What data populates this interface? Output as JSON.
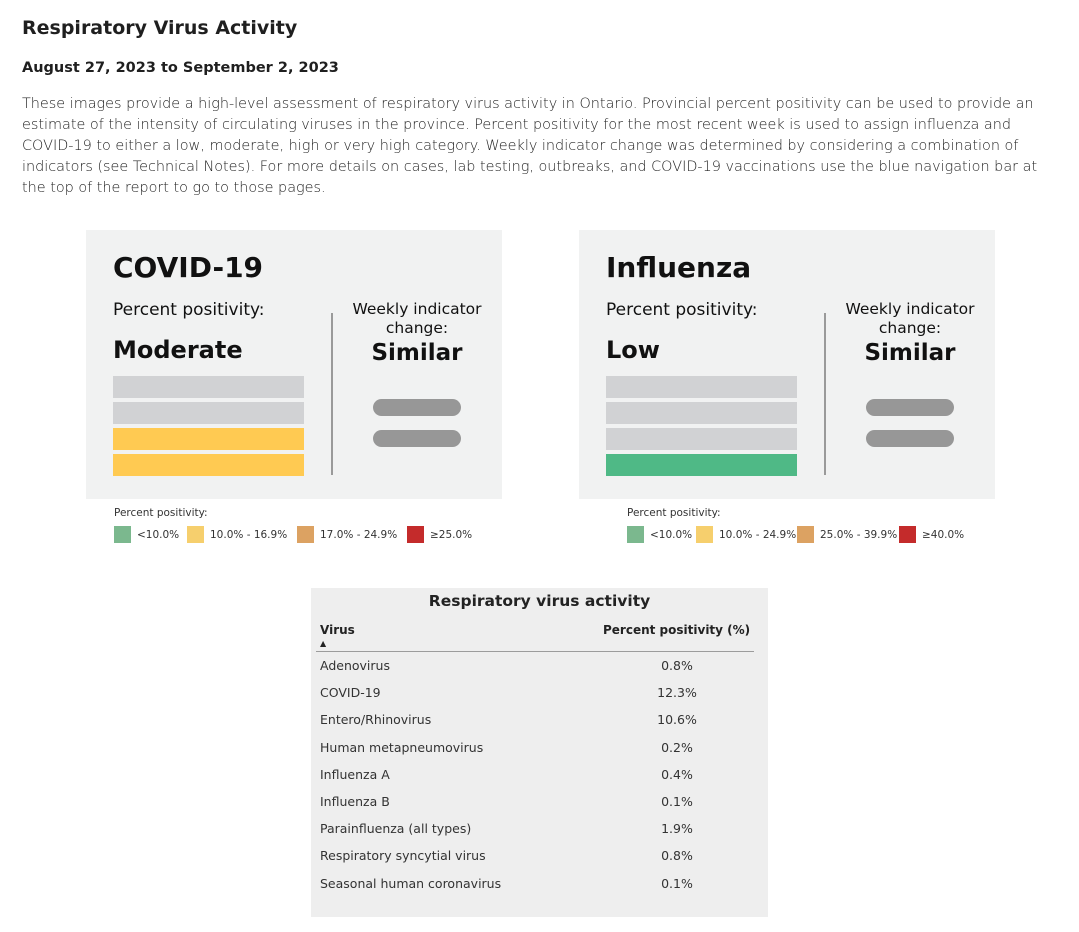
{
  "page": {
    "title": "Respiratory Virus Activity",
    "date_range": "August 27, 2023 to September 2, 2023",
    "intro": "These images provide a high-level assessment of respiratory virus activity in Ontario. Provincial percent positivity can be used to provide an estimate of the intensity of circulating viruses in the province. Percent positivity for the most recent week is used to assign influenza and COVID-19 to either a low, moderate, high or very high category. Weekly indicator change was determined by considering a combination of indicators (see Technical Notes). For more details on cases, lab testing, outbreaks, and COVID-19 vaccinations use the blue navigation bar at the top of the report to go to those pages."
  },
  "colors": {
    "low": "#4fb986",
    "moderate": "#ffca52",
    "high": "#e0a55f",
    "very_high": "#c0302f",
    "inactive_bar": "#d1d2d4",
    "pill": "#979797",
    "legend_low": "#7bb88e",
    "legend_moderate": "#f6cf6d",
    "legend_high": "#dca262",
    "legend_very_high": "#c42b2b"
  },
  "covid": {
    "name": "COVID-19",
    "pp_label": "Percent positivity:",
    "level": "Moderate",
    "level_index": 2,
    "wic_label": "Weekly indicator change:",
    "wic_value": "Similar",
    "legend_title": "Percent positivity:",
    "legend": [
      "<10.0%",
      "10.0% - 16.9%",
      "17.0% - 24.9%",
      "≥25.0%"
    ]
  },
  "influenza": {
    "name": "Influenza",
    "pp_label": "Percent positivity:",
    "level": "Low",
    "level_index": 1,
    "wic_label": "Weekly indicator change:",
    "wic_value": "Similar",
    "legend_title": "Percent positivity:",
    "legend": [
      "<10.0%",
      "10.0% - 24.9%",
      "25.0% - 39.9%",
      "≥40.0%"
    ]
  },
  "table": {
    "title": "Respiratory virus activity",
    "col_virus": "Virus",
    "col_pct": "Percent positivity (%)",
    "sort_icon": "sort-ascending-icon",
    "rows": [
      {
        "virus": "Adenovirus",
        "pct": "0.8%"
      },
      {
        "virus": "COVID-19",
        "pct": "12.3%"
      },
      {
        "virus": "Entero/Rhinovirus",
        "pct": "10.6%"
      },
      {
        "virus": "Human metapneumovirus",
        "pct": "0.2%"
      },
      {
        "virus": "Influenza A",
        "pct": "0.4%"
      },
      {
        "virus": "Influenza B",
        "pct": "0.1%"
      },
      {
        "virus": "Parainfluenza (all types)",
        "pct": "1.9%"
      },
      {
        "virus": "Respiratory syncytial virus",
        "pct": "0.8%"
      },
      {
        "virus": "Seasonal human coronavirus",
        "pct": "0.1%"
      }
    ]
  }
}
